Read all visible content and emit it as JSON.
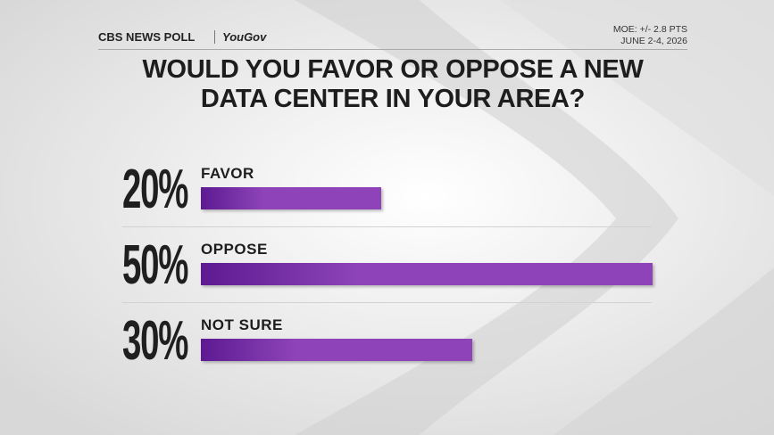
{
  "header": {
    "brand": "CBS NEWS POLL",
    "partner": "YouGov",
    "moe": "MOE: +/- 2.8 PTS",
    "dates": "JUNE 2-4, 2026"
  },
  "chart_data": {
    "type": "bar",
    "orientation": "horizontal",
    "title": "WOULD YOU FAVOR OR OPPOSE A NEW DATA CENTER IN YOUR AREA?",
    "categories": [
      "FAVOR",
      "OPPOSE",
      "NOT SURE"
    ],
    "values": [
      20,
      50,
      30
    ],
    "value_labels": [
      "20%",
      "50%",
      "30%"
    ],
    "color": "#8e44b8"
  }
}
